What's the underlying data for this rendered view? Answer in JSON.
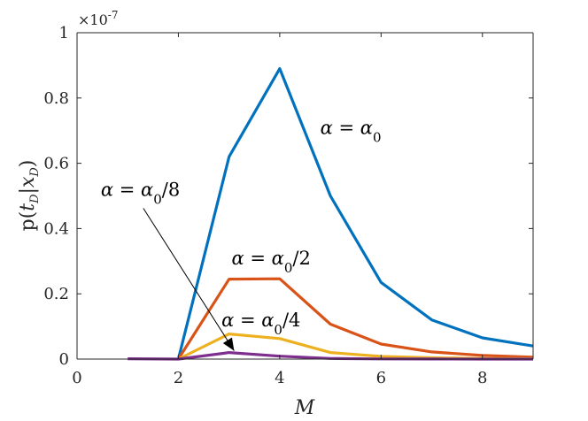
{
  "chart_data": {
    "type": "line",
    "xlabel": "M",
    "ylabel": "p(t_D|x_D)",
    "ylabel_parts": {
      "lead": "p(",
      "t": "t",
      "sub1": "D",
      "bar": "|",
      "x": "x",
      "sub2": "D",
      "close": ")"
    },
    "xlim": [
      0,
      9
    ],
    "ylim": [
      0,
      1
    ],
    "y_scale_exponent_label": "×10",
    "y_scale_exponent": "-7",
    "xticks": [
      0,
      2,
      4,
      6,
      8
    ],
    "xtick_labels": [
      "0",
      "2",
      "4",
      "6",
      "8"
    ],
    "yticks": [
      0,
      0.2,
      0.4,
      0.6,
      0.8,
      1
    ],
    "ytick_labels": [
      "0",
      "0.2",
      "0.4",
      "0.6",
      "0.8",
      "1"
    ],
    "grid": false,
    "box": true,
    "x": [
      1,
      2,
      3,
      4,
      5,
      6,
      7,
      8,
      9
    ],
    "series": [
      {
        "color": "#0072BD",
        "values": [
          null,
          0.0,
          0.62,
          0.89,
          0.5,
          0.235,
          0.12,
          0.065,
          0.04
        ]
      },
      {
        "color": "#D95319",
        "values": [
          null,
          0.0,
          0.245,
          0.246,
          0.107,
          0.046,
          0.022,
          0.011,
          0.006
        ]
      },
      {
        "color": "#EDB120",
        "values": [
          null,
          0.0,
          0.077,
          0.063,
          0.02,
          0.008,
          0.004,
          0.002,
          0.001
        ]
      },
      {
        "color": "#7E2F8E",
        "values": [
          0.001,
          0.0,
          0.02,
          0.009,
          0.002,
          0.0005,
          0.0002,
          0.0001,
          0.0001
        ]
      }
    ],
    "annotations": [
      {
        "alpha": "α",
        "eq": " = ",
        "a": "α",
        "sub": "0",
        "suffix": "",
        "x": 4.8,
        "y": 0.69
      },
      {
        "alpha": "α",
        "eq": " = ",
        "a": "α",
        "sub": "0",
        "suffix": "/2",
        "x": 3.05,
        "y": 0.29
      },
      {
        "alpha": "α",
        "eq": " = ",
        "a": "α",
        "sub": "0",
        "suffix": "/4",
        "x": 2.85,
        "y": 0.1
      },
      {
        "alpha": "α",
        "eq": " = ",
        "a": "α",
        "sub": "0",
        "suffix": "/8",
        "x": 0.47,
        "y": 0.5,
        "arrow_to": [
          3.1,
          0.02
        ]
      }
    ]
  }
}
